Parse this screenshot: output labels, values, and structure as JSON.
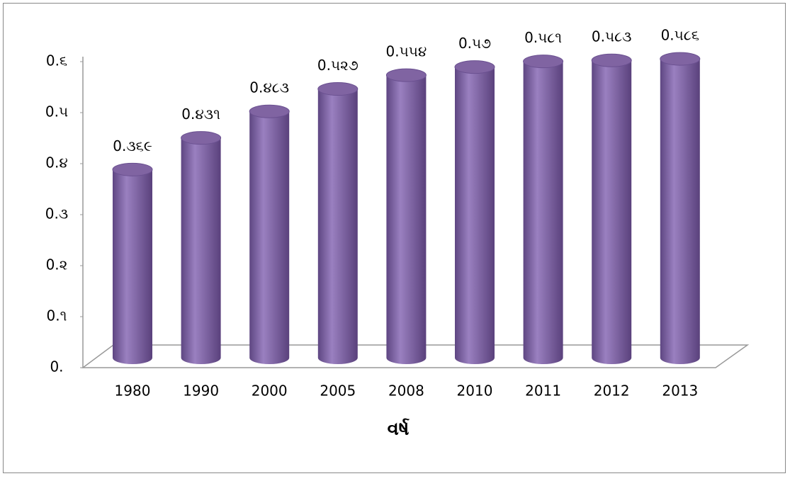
{
  "chart_data": {
    "type": "bar",
    "x_label": "વર્ષ",
    "categories": [
      "1980",
      "1990",
      "2000",
      "2005",
      "2008",
      "2010",
      "2011",
      "2012",
      "2013"
    ],
    "values": [
      0.369,
      0.431,
      0.483,
      0.527,
      0.554,
      0.57,
      0.581,
      0.583,
      0.586
    ],
    "value_labels": [
      "0.૩૬૯",
      "0.૪૩૧",
      "0.૪૮૩",
      "0.૫૨૭",
      "0.૫૫૪",
      "0.૫૭",
      "0.૫૮૧",
      "0.૫૮૩",
      "0.૫૮૬"
    ],
    "color": "#8064a2",
    "ylim": [
      0,
      0.6
    ],
    "yticks": [
      {
        "value": 0,
        "label": "0."
      },
      {
        "value": 0.1,
        "label": "0.૧"
      },
      {
        "value": 0.2,
        "label": "0.૨"
      },
      {
        "value": 0.3,
        "label": "0.૩"
      },
      {
        "value": 0.4,
        "label": "0.૪"
      },
      {
        "value": 0.5,
        "label": "0.૫"
      },
      {
        "value": 0.6,
        "label": "0.૬"
      }
    ]
  }
}
